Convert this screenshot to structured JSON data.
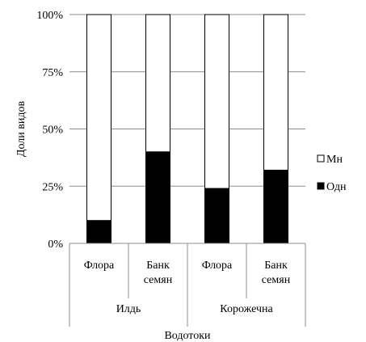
{
  "chart_data": {
    "type": "bar",
    "stacked": true,
    "percent": true,
    "ylabel": "Доли видов",
    "xlabel": "Водотоки",
    "ylim": [
      0,
      100
    ],
    "yticks": [
      "0%",
      "25%",
      "50%",
      "75%",
      "100%"
    ],
    "grid": true,
    "legend_position": "right",
    "categories": [
      "Флора",
      "Банк семян",
      "Флора",
      "Банк семян"
    ],
    "category_lines": [
      [
        "Флора"
      ],
      [
        "Банк",
        "семян"
      ],
      [
        "Флора"
      ],
      [
        "Банк",
        "семян"
      ]
    ],
    "groups": [
      {
        "label": "Илдь",
        "span": [
          0,
          1
        ]
      },
      {
        "label": "Корожечна",
        "span": [
          2,
          3
        ]
      }
    ],
    "series": [
      {
        "name": "Одн",
        "color": "#000000",
        "values": [
          10,
          40,
          24,
          32
        ]
      },
      {
        "name": "Мн",
        "color": "#ffffff",
        "values": [
          90,
          60,
          76,
          68
        ]
      }
    ],
    "legend": [
      {
        "name": "Мн",
        "color": "#ffffff"
      },
      {
        "name": "Одн",
        "color": "#000000"
      }
    ]
  }
}
